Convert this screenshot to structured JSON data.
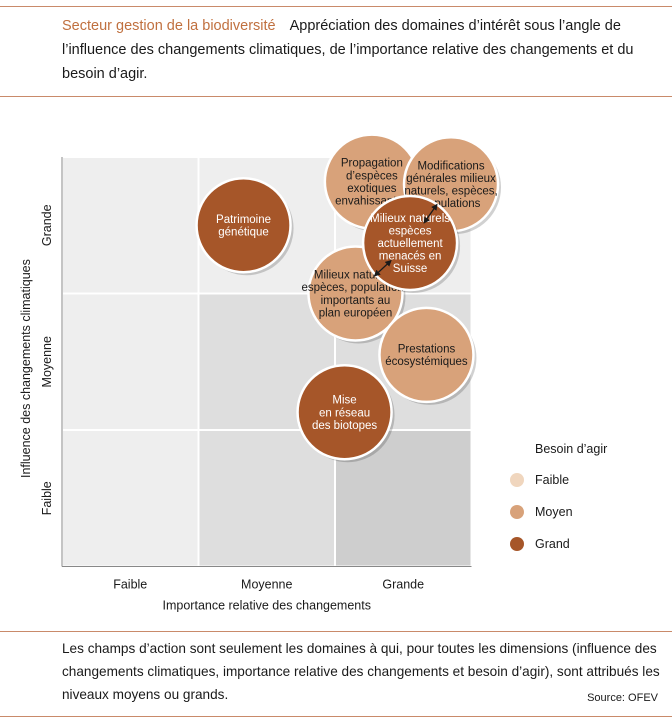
{
  "header": {
    "title": "Secteur gestion de la biodiversité",
    "description": "Appréciation des domaines d’intérêt sous l’angle de l’influence des changements climatiques, de l’importance relative des changements et du besoin d’agir."
  },
  "colors": {
    "grid_cells": [
      "#eeeeee",
      "#dedede",
      "#cecece"
    ],
    "faible": "#f0d6be",
    "moyen": "#d8a27a",
    "grand": "#a65629",
    "accent": "#c0703f"
  },
  "chart_data": {
    "type": "scatter",
    "xlabel": "Importance relative des changements",
    "ylabel": "Influence des changements climatiques",
    "x_categories": [
      "Faible",
      "Moyenne",
      "Grande"
    ],
    "y_categories": [
      "Faible",
      "Moyenne",
      "Grande"
    ],
    "legend": {
      "title": "Besoin d’agir",
      "position": "right",
      "items": [
        {
          "label": "Faible",
          "key": "faible"
        },
        {
          "label": "Moyen",
          "key": "moyen"
        },
        {
          "label": "Grand",
          "key": "grand"
        }
      ]
    },
    "points": [
      {
        "label": [
          "Propagation",
          "d’espèces",
          "exotiques",
          "envahissantes"
        ],
        "x": 2.27,
        "y": 2.82,
        "need": "moyen"
      },
      {
        "label": [
          "Modifications",
          "générales milieux",
          "naturels, espèces,",
          "populations"
        ],
        "x": 2.85,
        "y": 2.8,
        "need": "moyen"
      },
      {
        "label": [
          "Patrimoine",
          "génétique"
        ],
        "x": 1.33,
        "y": 2.5,
        "need": "grand"
      },
      {
        "label": [
          "Milieux naturels,",
          "espèces, populations",
          "importants au",
          "plan européen"
        ],
        "x": 2.15,
        "y": 2.0,
        "need": "moyen"
      },
      {
        "label": [
          "Milieux naturels",
          "espèces",
          "actuellement",
          "menacés en",
          "Suisse"
        ],
        "x": 2.55,
        "y": 2.37,
        "need": "grand"
      },
      {
        "label": [
          "Prestations",
          "écosystémiques"
        ],
        "x": 2.67,
        "y": 1.55,
        "need": "moyen"
      },
      {
        "label": [
          "Mise",
          "en réseau",
          "des biotopes"
        ],
        "x": 2.07,
        "y": 1.13,
        "need": "grand"
      }
    ],
    "links": [
      [
        1,
        4
      ],
      [
        3,
        4
      ]
    ]
  },
  "footer": {
    "note": "Les champs d’action sont seulement les domaines à qui, pour toutes les dimensions (influence des changements climatiques, importance relative des changements et besoin d’agir), sont attribués les niveaux moyens ou grands.",
    "source": "Source: OFEV"
  }
}
